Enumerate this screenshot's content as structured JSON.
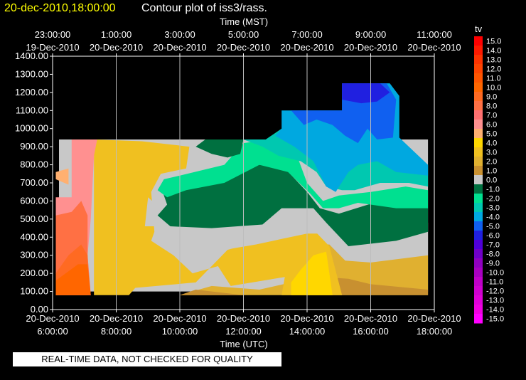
{
  "chart_data": {
    "type": "heatmap",
    "title_time": "20-dec-2010,18:00:00",
    "title": "Contour plot of iss3/rass.",
    "top_axis_label": "Time (MST)",
    "xlabel": "Time (UTC)",
    "ylabel": "",
    "legend_title": "tv",
    "grid": true,
    "ylim": [
      0,
      1400
    ],
    "xlim": [
      "2010-12-20 06:00",
      "2010-12-20 18:00"
    ],
    "x_ticks_bottom": [
      {
        "time": "6:00:00",
        "date": "20-Dec-2010",
        "hour": 6
      },
      {
        "time": "8:00:00",
        "date": "20-Dec-2010",
        "hour": 8
      },
      {
        "time": "10:00:00",
        "date": "20-Dec-2010",
        "hour": 10
      },
      {
        "time": "12:00:00",
        "date": "20-Dec-2010",
        "hour": 12
      },
      {
        "time": "14:00:00",
        "date": "20-Dec-2010",
        "hour": 14
      },
      {
        "time": "16:00:00",
        "date": "20-Dec-2010",
        "hour": 16
      },
      {
        "time": "18:00:00",
        "date": "20-Dec-2010",
        "hour": 18
      }
    ],
    "x_ticks_top": [
      {
        "time": "23:00:00",
        "date": "19-Dec-2010",
        "hour": 6
      },
      {
        "time": "1:00:00",
        "date": "20-Dec-2010",
        "hour": 8
      },
      {
        "time": "3:00:00",
        "date": "20-Dec-2010",
        "hour": 10
      },
      {
        "time": "5:00:00",
        "date": "20-Dec-2010",
        "hour": 12
      },
      {
        "time": "7:00:00",
        "date": "20-Dec-2010",
        "hour": 14
      },
      {
        "time": "9:00:00",
        "date": "20-Dec-2010",
        "hour": 16
      },
      {
        "time": "11:00:00",
        "date": "20-Dec-2010",
        "hour": 18
      }
    ],
    "y_ticks": [
      "0.00",
      "100.00",
      "200.00",
      "300.00",
      "400.00",
      "500.00",
      "600.00",
      "700.00",
      "800.00",
      "900.00",
      "1000.00",
      "1100.00",
      "1200.00",
      "1300.00",
      "1400.00"
    ],
    "legend": [
      {
        "label": "15.0",
        "color": "#ff0000"
      },
      {
        "label": "14.0",
        "color": "#ff1a00"
      },
      {
        "label": "13.0",
        "color": "#ff3300"
      },
      {
        "label": "12.0",
        "color": "#ff4400"
      },
      {
        "label": "11.0",
        "color": "#ff5500"
      },
      {
        "label": "10.0",
        "color": "#ff6600"
      },
      {
        "label": "9.0",
        "color": "#ff6a22"
      },
      {
        "label": "8.0",
        "color": "#ff7044"
      },
      {
        "label": "7.0",
        "color": "#ff7070"
      },
      {
        "label": "6.0",
        "color": "#ff9090"
      },
      {
        "label": "5.0",
        "color": "#ffb070"
      },
      {
        "label": "4.0",
        "color": "#ffd700"
      },
      {
        "label": "3.0",
        "color": "#f0c020"
      },
      {
        "label": "2.0",
        "color": "#e0b030"
      },
      {
        "label": "1.0",
        "color": "#c89030"
      },
      {
        "label": "0.0",
        "color": "#c8c8c8"
      },
      {
        "label": "-1.0",
        "color": "#007040"
      },
      {
        "label": "-2.0",
        "color": "#00e090"
      },
      {
        "label": "-3.0",
        "color": "#00c8b0"
      },
      {
        "label": "-4.0",
        "color": "#00a8e0"
      },
      {
        "label": "-5.0",
        "color": "#1060f0"
      },
      {
        "label": "-6.0",
        "color": "#2020e0"
      },
      {
        "label": "-7.0",
        "color": "#5000d8"
      },
      {
        "label": "-8.0",
        "color": "#7000c8"
      },
      {
        "label": "-9.0",
        "color": "#9000c0"
      },
      {
        "label": "-10.0",
        "color": "#a800c0"
      },
      {
        "label": "-11.0",
        "color": "#c000c8"
      },
      {
        "label": "-12.0",
        "color": "#d000d0"
      },
      {
        "label": "-13.0",
        "color": "#e000d8"
      },
      {
        "label": "-14.0",
        "color": "#f000e0"
      },
      {
        "label": "-15.0",
        "color": "#ff00ff"
      }
    ],
    "contour_regions": [
      {
        "level": "0.0",
        "color": "#c8c8c8",
        "points": [
          [
            6.2,
            100
          ],
          [
            17.8,
            100
          ],
          [
            17.8,
            940
          ],
          [
            6.2,
            940
          ]
        ]
      },
      {
        "level": "2.0",
        "color": "#e0b030",
        "points": [
          [
            6.2,
            80
          ],
          [
            10,
            80
          ],
          [
            11,
            130
          ],
          [
            12.5,
            110
          ],
          [
            13.5,
            150
          ],
          [
            14,
            350
          ],
          [
            14.7,
            360
          ],
          [
            15.2,
            270
          ],
          [
            16,
            260
          ],
          [
            17.8,
            300
          ],
          [
            17.8,
            80
          ]
        ]
      },
      {
        "level": "1.0",
        "color": "#c89030",
        "points": [
          [
            8,
            80
          ],
          [
            10,
            80
          ],
          [
            10.5,
            110
          ],
          [
            12,
            80
          ],
          [
            14,
            80
          ],
          [
            14.5,
            180
          ],
          [
            15.3,
            170
          ],
          [
            16,
            140
          ],
          [
            17.8,
            110
          ],
          [
            17.8,
            80
          ]
        ]
      },
      {
        "level": "3.0",
        "color": "#f0c020",
        "points": [
          [
            7.3,
            80
          ],
          [
            7.3,
            940
          ],
          [
            8.8,
            930
          ],
          [
            10.3,
            900
          ],
          [
            10.2,
            780
          ],
          [
            9.4,
            750
          ],
          [
            9.1,
            650
          ],
          [
            9.2,
            430
          ],
          [
            9.1,
            380
          ],
          [
            9.8,
            300
          ],
          [
            10.4,
            200
          ],
          [
            11.2,
            240
          ],
          [
            11.6,
            130
          ],
          [
            13.3,
            180
          ],
          [
            13.2,
            80
          ],
          [
            15.1,
            80
          ],
          [
            14.7,
            350
          ],
          [
            14.1,
            460
          ],
          [
            13.2,
            460
          ],
          [
            12.5,
            380
          ],
          [
            11.5,
            330
          ],
          [
            10.5,
            150
          ],
          [
            8.6,
            120
          ],
          [
            8.4,
            80
          ]
        ]
      },
      {
        "level": "4.0",
        "color": "#ffd700",
        "points": [
          [
            13.5,
            80
          ],
          [
            14.8,
            80
          ],
          [
            14.6,
            320
          ],
          [
            14.2,
            300
          ],
          [
            13.8,
            220
          ],
          [
            13.5,
            150
          ]
        ]
      },
      {
        "level": "0.0",
        "color": "#c8c8c8",
        "points": [
          [
            8.9,
            460
          ],
          [
            9.6,
            460
          ],
          [
            10.2,
            330
          ],
          [
            10.8,
            320
          ],
          [
            11.4,
            330
          ],
          [
            12.4,
            360
          ],
          [
            13.2,
            390
          ],
          [
            14,
            420
          ],
          [
            14.6,
            420
          ],
          [
            14.8,
            350
          ],
          [
            15.6,
            330
          ],
          [
            16.8,
            330
          ],
          [
            17.8,
            300
          ],
          [
            17.8,
            480
          ],
          [
            15.1,
            480
          ],
          [
            14.5,
            560
          ],
          [
            13.2,
            560
          ],
          [
            12.2,
            440
          ],
          [
            10.4,
            450
          ],
          [
            9.5,
            540
          ],
          [
            9,
            620
          ]
        ]
      },
      {
        "level": "-1.0",
        "color": "#007040",
        "points": [
          [
            9.4,
            680
          ],
          [
            10.1,
            700
          ],
          [
            11.2,
            720
          ],
          [
            12,
            800
          ],
          [
            13.2,
            800
          ],
          [
            14,
            650
          ],
          [
            14.4,
            560
          ],
          [
            15,
            530
          ],
          [
            16.1,
            590
          ],
          [
            17.8,
            560
          ],
          [
            17.8,
            430
          ],
          [
            16.8,
            380
          ],
          [
            15.3,
            350
          ],
          [
            14.6,
            480
          ],
          [
            14.2,
            560
          ],
          [
            13.2,
            560
          ],
          [
            12.6,
            470
          ],
          [
            11,
            450
          ],
          [
            9.7,
            460
          ],
          [
            9.3,
            520
          ],
          [
            9.6,
            580
          ]
        ]
      },
      {
        "level": "-2.0",
        "color": "#00e090",
        "points": [
          [
            9.5,
            720
          ],
          [
            10,
            740
          ],
          [
            11.4,
            800
          ],
          [
            12,
            920
          ],
          [
            12.8,
            940
          ],
          [
            13.6,
            890
          ],
          [
            14,
            700
          ],
          [
            14.5,
            600
          ],
          [
            15,
            630
          ],
          [
            16,
            650
          ],
          [
            17.1,
            680
          ],
          [
            17.8,
            660
          ],
          [
            17.8,
            560
          ],
          [
            16.8,
            560
          ],
          [
            15.6,
            590
          ],
          [
            15,
            560
          ],
          [
            14.5,
            560
          ],
          [
            14.1,
            640
          ],
          [
            13.4,
            760
          ],
          [
            12.5,
            800
          ],
          [
            11.4,
            700
          ],
          [
            10.2,
            660
          ],
          [
            9.6,
            620
          ],
          [
            9.3,
            660
          ]
        ]
      },
      {
        "level": "-1.0",
        "color": "#007040",
        "points": [
          [
            10.8,
            940
          ],
          [
            12,
            940
          ],
          [
            11.9,
            860
          ],
          [
            11.5,
            840
          ],
          [
            11,
            860
          ],
          [
            10.5,
            900
          ]
        ]
      },
      {
        "level": "-3.0",
        "color": "#00c8b0",
        "points": [
          [
            12,
            940
          ],
          [
            12.7,
            940
          ],
          [
            13.2,
            1000
          ],
          [
            15.5,
            1000
          ],
          [
            17.8,
            800
          ],
          [
            17.8,
            680
          ],
          [
            17.2,
            700
          ],
          [
            16.3,
            700
          ],
          [
            15.5,
            660
          ],
          [
            15.1,
            660
          ],
          [
            14.6,
            680
          ],
          [
            14.3,
            760
          ],
          [
            13.8,
            820
          ],
          [
            13.1,
            850
          ],
          [
            12.6,
            900
          ]
        ]
      },
      {
        "level": "-4.0",
        "color": "#00a8e0",
        "points": [
          [
            13.2,
            1000
          ],
          [
            13.2,
            1100
          ],
          [
            15.1,
            1100
          ],
          [
            15.1,
            1250
          ],
          [
            16.6,
            1250
          ],
          [
            16.9,
            1180
          ],
          [
            16.9,
            950
          ],
          [
            17.8,
            800
          ],
          [
            17.8,
            740
          ],
          [
            16.8,
            760
          ],
          [
            16.2,
            820
          ],
          [
            15.6,
            800
          ],
          [
            15.3,
            760
          ],
          [
            14.9,
            650
          ],
          [
            14.6,
            680
          ],
          [
            14.2,
            820
          ],
          [
            13.6,
            900
          ],
          [
            13,
            960
          ]
        ]
      },
      {
        "level": "-5.0",
        "color": "#1060f0",
        "points": [
          [
            13.5,
            1100
          ],
          [
            15.1,
            1100
          ],
          [
            15.1,
            1250
          ],
          [
            16.5,
            1250
          ],
          [
            16.8,
            1160
          ],
          [
            16.7,
            950
          ],
          [
            16.2,
            940
          ],
          [
            15.9,
            1000
          ],
          [
            15.6,
            920
          ],
          [
            15.2,
            960
          ],
          [
            14.8,
            1020
          ],
          [
            14.3,
            1050
          ],
          [
            13.9,
            1020
          ]
        ]
      },
      {
        "level": "-6.0",
        "color": "#2020e0",
        "points": [
          [
            15.1,
            1160
          ],
          [
            15.1,
            1250
          ],
          [
            16.3,
            1250
          ],
          [
            16.6,
            1200
          ],
          [
            16.2,
            1150
          ],
          [
            15.7,
            1140
          ]
        ]
      },
      {
        "level": "6.0",
        "color": "#ff9090",
        "points": [
          [
            6.1,
            80
          ],
          [
            6.1,
            620
          ],
          [
            6.6,
            620
          ],
          [
            6.6,
            940
          ],
          [
            7.4,
            940
          ],
          [
            7.3,
            850
          ],
          [
            7.2,
            500
          ],
          [
            7.1,
            300
          ],
          [
            7.2,
            80
          ]
        ]
      },
      {
        "level": "5.0",
        "color": "#ffb070",
        "points": [
          [
            6.1,
            720
          ],
          [
            6.5,
            690
          ],
          [
            6.5,
            780
          ],
          [
            6.1,
            760
          ]
        ]
      },
      {
        "level": "7.0",
        "color": "#ff7044",
        "points": [
          [
            6.1,
            80
          ],
          [
            6.1,
            520
          ],
          [
            6.6,
            540
          ],
          [
            6.9,
            600
          ],
          [
            7.1,
            520
          ],
          [
            7.1,
            300
          ],
          [
            7.2,
            80
          ]
        ]
      },
      {
        "level": "9.0",
        "color": "#ff6a22",
        "points": [
          [
            6.1,
            80
          ],
          [
            6.1,
            200
          ],
          [
            6.5,
            300
          ],
          [
            6.9,
            360
          ],
          [
            7.1,
            300
          ],
          [
            7.1,
            80
          ]
        ]
      },
      {
        "level": "10.0",
        "color": "#ff6600",
        "points": [
          [
            6.1,
            80
          ],
          [
            6.1,
            160
          ],
          [
            6.8,
            250
          ],
          [
            7.1,
            250
          ],
          [
            7.2,
            80
          ]
        ]
      }
    ]
  },
  "notice": "REAL-TIME DATA, NOT CHECKED FOR QUALITY"
}
